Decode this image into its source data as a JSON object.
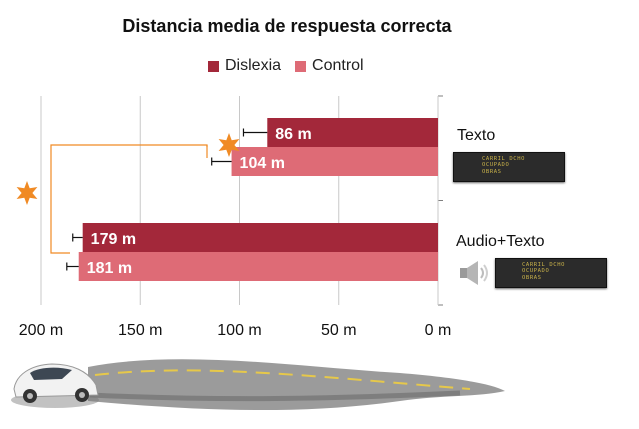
{
  "chart_data": {
    "type": "bar",
    "orientation": "horizontal",
    "title": "Distancia media de respuesta correcta",
    "categories": [
      "Texto",
      "Audio+Texto"
    ],
    "series": [
      {
        "name": "Dislexia",
        "color": "#a3283a",
        "values": [
          86,
          179
        ],
        "labels": [
          "86 m",
          "179 m"
        ],
        "error": [
          12,
          5
        ]
      },
      {
        "name": "Control",
        "color": "#de6b76",
        "values": [
          104,
          181
        ],
        "labels": [
          "104 m",
          "181 m"
        ],
        "error": [
          10,
          6
        ]
      }
    ],
    "x_axis": {
      "min": 0,
      "max": 200,
      "reversed": true,
      "ticks": [
        200,
        150,
        100,
        50,
        0
      ],
      "tick_labels": [
        "200 m",
        "150 m",
        "100 m",
        "50 m",
        "0 m"
      ]
    },
    "legend_position": "top",
    "significance_markers": [
      "star",
      "star"
    ]
  },
  "vms_sign": {
    "lines": [
      "CARRIL DCHO",
      "OCUPADO",
      "OBRAS"
    ]
  },
  "icons": [
    "speaker-icon",
    "car-icon",
    "road-icon",
    "star-icon"
  ],
  "colors": {
    "accent": "#f08a24",
    "axis": "#7f7f7f"
  }
}
